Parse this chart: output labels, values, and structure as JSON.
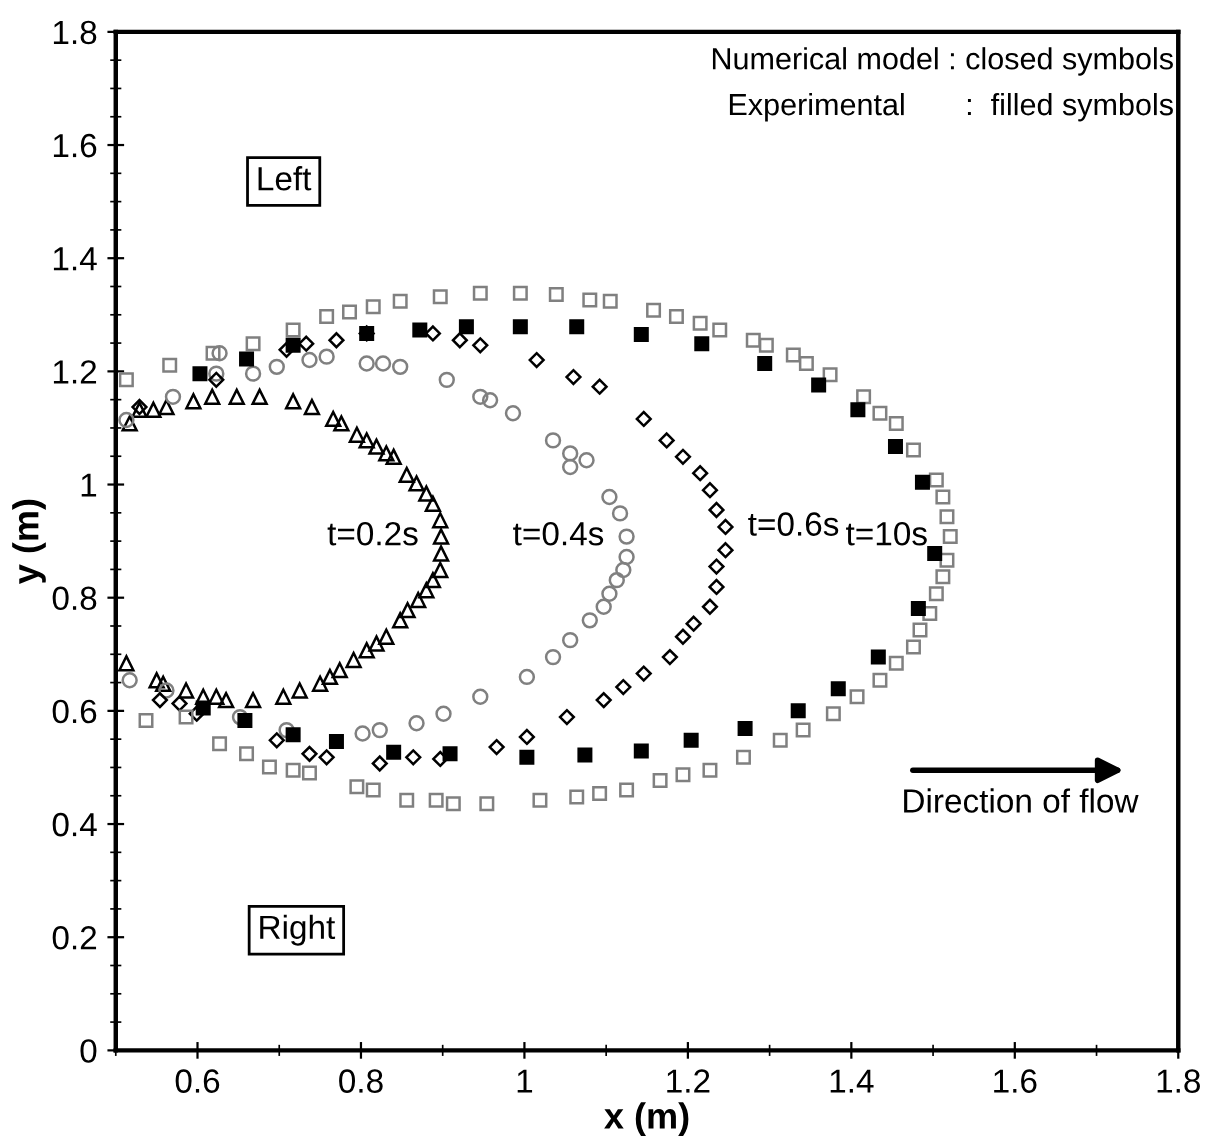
{
  "chart_data": {
    "type": "scatter",
    "xlabel": "x (m)",
    "ylabel": "y (m)",
    "xlim": [
      0.5,
      1.8
    ],
    "ylim": [
      0,
      1.8
    ],
    "xticks": [
      0.6,
      0.8,
      1,
      1.2,
      1.4,
      1.6,
      1.8
    ],
    "yticks": [
      0,
      0.2,
      0.4,
      0.6,
      0.8,
      1,
      1.2,
      1.4,
      1.6,
      1.8
    ],
    "grid": false,
    "legend": false,
    "annotations": [
      "Numerical model : closed symbols",
      "Experimental       :  filled symbols",
      "Left",
      "Right",
      "Direction of flow"
    ],
    "series": [
      {
        "name": "t=0.2s",
        "color": "#000000",
        "marker": "triangle",
        "x": [
          0.517,
          0.529,
          0.546,
          0.562,
          0.595,
          0.618,
          0.648,
          0.676,
          0.717,
          0.74,
          0.766,
          0.776,
          0.795,
          0.807,
          0.819,
          0.831,
          0.84,
          0.856,
          0.868,
          0.88,
          0.888,
          0.897,
          0.898,
          0.898,
          0.897,
          0.888,
          0.88,
          0.87,
          0.857,
          0.848,
          0.831,
          0.819,
          0.807,
          0.791,
          0.774,
          0.762,
          0.75,
          0.725,
          0.705,
          0.668,
          0.635,
          0.623,
          0.607,
          0.586,
          0.558,
          0.55,
          0.513
        ],
        "values": [
          1.108,
          1.132,
          1.132,
          1.137,
          1.147,
          1.155,
          1.155,
          1.155,
          1.147,
          1.137,
          1.116,
          1.108,
          1.088,
          1.078,
          1.067,
          1.055,
          1.049,
          1.017,
          1.002,
          0.984,
          0.966,
          0.937,
          0.908,
          0.878,
          0.849,
          0.831,
          0.813,
          0.796,
          0.778,
          0.76,
          0.731,
          0.719,
          0.707,
          0.69,
          0.672,
          0.66,
          0.648,
          0.636,
          0.625,
          0.619,
          0.619,
          0.625,
          0.625,
          0.636,
          0.648,
          0.654,
          0.684
        ]
      },
      {
        "name": "t=0.4s",
        "color": "#808080",
        "marker": "circle",
        "x": [
          0.513,
          0.57,
          0.623,
          0.627,
          0.668,
          0.697,
          0.737,
          0.758,
          0.807,
          0.827,
          0.848,
          0.905,
          0.946,
          0.958,
          0.986,
          1.035,
          1.056,
          1.056,
          1.076,
          1.104,
          1.117,
          1.125,
          1.125,
          1.121,
          1.113,
          1.104,
          1.097,
          1.08,
          1.056,
          1.035,
          1.003,
          0.946,
          0.901,
          0.868,
          0.823,
          0.802,
          0.709,
          0.652,
          0.562,
          0.517
        ],
        "values": [
          1.114,
          1.155,
          1.196,
          1.232,
          1.196,
          1.208,
          1.22,
          1.226,
          1.214,
          1.214,
          1.208,
          1.185,
          1.155,
          1.149,
          1.126,
          1.078,
          1.055,
          1.031,
          1.043,
          0.978,
          0.949,
          0.908,
          0.872,
          0.849,
          0.831,
          0.807,
          0.784,
          0.76,
          0.725,
          0.695,
          0.66,
          0.625,
          0.595,
          0.578,
          0.566,
          0.56,
          0.566,
          0.589,
          0.636,
          0.654
        ]
      },
      {
        "name": "t=0.6s",
        "color": "#000000",
        "marker": "diamond",
        "x": [
          0.529,
          0.623,
          0.709,
          0.733,
          0.77,
          0.807,
          0.888,
          0.921,
          0.946,
          1.015,
          1.06,
          1.092,
          1.146,
          1.174,
          1.194,
          1.215,
          1.227,
          1.235,
          1.246,
          1.246,
          1.235,
          1.235,
          1.227,
          1.207,
          1.194,
          1.178,
          1.146,
          1.121,
          1.097,
          1.052,
          1.003,
          0.966,
          0.897,
          0.864,
          0.823,
          0.758,
          0.737,
          0.697,
          0.599,
          0.578,
          0.554
        ],
        "values": [
          1.137,
          1.185,
          1.238,
          1.249,
          1.255,
          1.267,
          1.267,
          1.255,
          1.246,
          1.22,
          1.19,
          1.173,
          1.116,
          1.078,
          1.049,
          1.02,
          0.99,
          0.955,
          0.925,
          0.884,
          0.855,
          0.819,
          0.784,
          0.754,
          0.731,
          0.695,
          0.666,
          0.642,
          0.619,
          0.589,
          0.554,
          0.536,
          0.515,
          0.518,
          0.507,
          0.518,
          0.524,
          0.548,
          0.595,
          0.613,
          0.619
        ]
      },
      {
        "name": "t=10s",
        "color": "#808080",
        "marker": "square",
        "x": [
          0.513,
          0.566,
          0.619,
          0.668,
          0.717,
          0.758,
          0.786,
          0.815,
          0.848,
          0.897,
          0.946,
          0.995,
          1.039,
          1.08,
          1.105,
          1.158,
          1.186,
          1.215,
          1.239,
          1.28,
          1.296,
          1.329,
          1.345,
          1.374,
          1.415,
          1.435,
          1.455,
          1.476,
          1.504,
          1.512,
          1.517,
          1.521,
          1.517,
          1.512,
          1.504,
          1.496,
          1.484,
          1.476,
          1.455,
          1.435,
          1.407,
          1.378,
          1.341,
          1.313,
          1.268,
          1.227,
          1.194,
          1.166,
          1.125,
          1.092,
          1.064,
          1.019,
          0.954,
          0.913,
          0.892,
          0.856,
          0.815,
          0.795,
          0.737,
          0.717,
          0.688,
          0.66,
          0.627,
          0.586,
          0.537
        ],
        "values": [
          1.185,
          1.211,
          1.232,
          1.249,
          1.273,
          1.297,
          1.305,
          1.314,
          1.324,
          1.332,
          1.338,
          1.338,
          1.336,
          1.326,
          1.324,
          1.308,
          1.297,
          1.285,
          1.273,
          1.255,
          1.246,
          1.229,
          1.214,
          1.194,
          1.155,
          1.126,
          1.108,
          1.061,
          1.008,
          0.978,
          0.943,
          0.908,
          0.866,
          0.837,
          0.807,
          0.772,
          0.743,
          0.713,
          0.684,
          0.654,
          0.625,
          0.595,
          0.566,
          0.548,
          0.518,
          0.495,
          0.487,
          0.477,
          0.46,
          0.454,
          0.448,
          0.442,
          0.436,
          0.436,
          0.442,
          0.442,
          0.46,
          0.466,
          0.49,
          0.495,
          0.501,
          0.524,
          0.542,
          0.589,
          0.583
        ]
      },
      {
        "color": "#000000",
        "marker": "square",
        "x": [
          0.603,
          0.66,
          0.717,
          0.807,
          0.872,
          0.929,
          0.995,
          1.064,
          1.143,
          1.217,
          1.294,
          1.36,
          1.408,
          1.454,
          1.487,
          1.502,
          1.482,
          1.433,
          1.384,
          1.335,
          1.27,
          1.204,
          1.143,
          1.074,
          1.003,
          0.909,
          0.84,
          0.77,
          0.717,
          0.658,
          0.607
        ],
        "values": [
          1.196,
          1.222,
          1.246,
          1.267,
          1.273,
          1.279,
          1.279,
          1.279,
          1.265,
          1.249,
          1.214,
          1.176,
          1.132,
          1.067,
          1.004,
          0.878,
          0.781,
          0.695,
          0.639,
          0.6,
          0.569,
          0.548,
          0.529,
          0.522,
          0.518,
          0.524,
          0.527,
          0.546,
          0.558,
          0.583,
          0.605
        ]
      }
    ]
  }
}
